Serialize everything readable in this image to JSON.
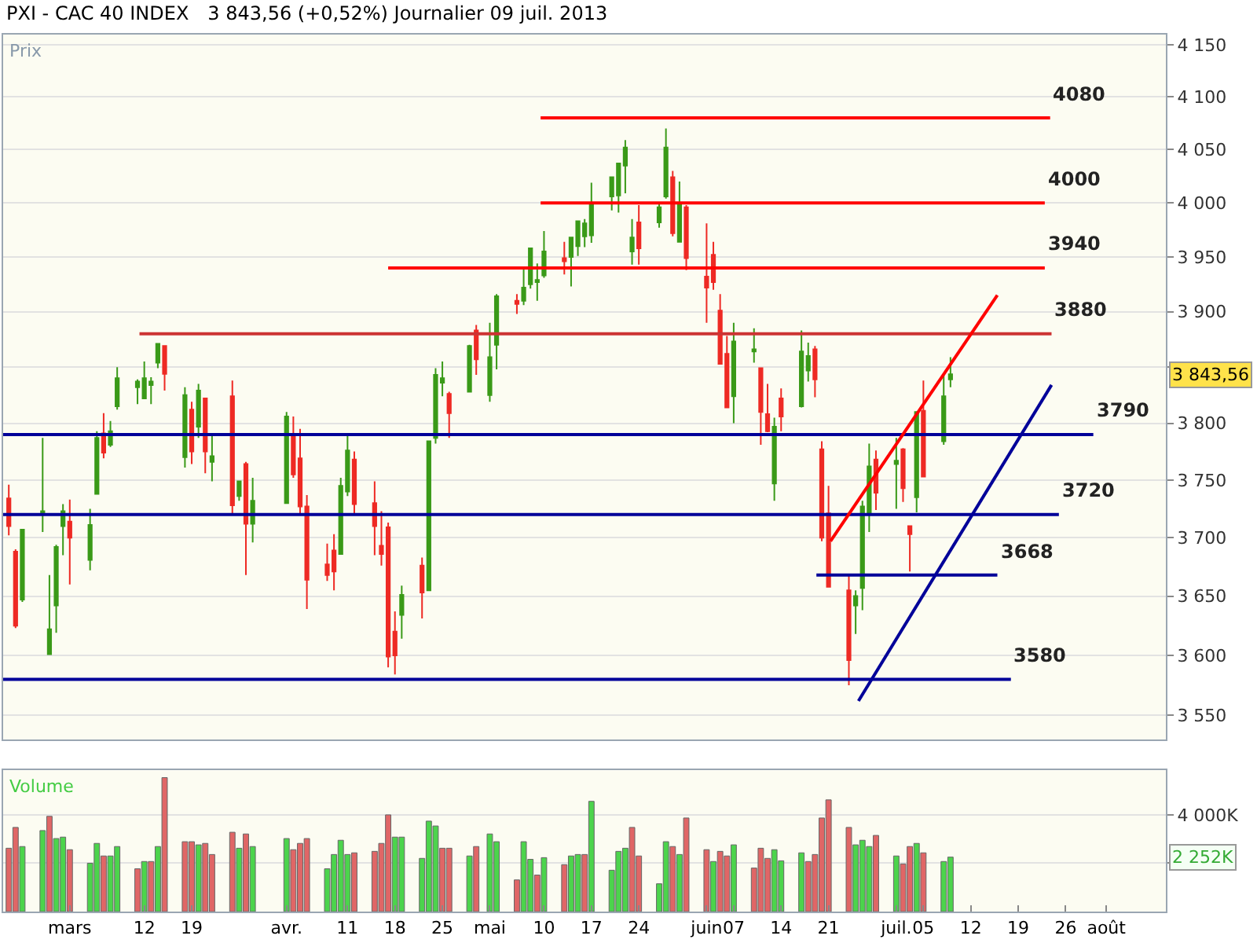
{
  "chart_data": [
    {
      "type": "candlestick",
      "title": "PXI - CAC 40 INDEX",
      "subtitle": "3 843,56 (+0,52%) Journalier 09 juil. 2013",
      "ylabel": "Prix",
      "log": true,
      "grid": "y",
      "tick_labels": "y",
      "xlim": [
        "2013-02-19T04:00",
        "2013-08-09T19:00"
      ],
      "ylim": [
        3530,
        4160
      ],
      "yticks": [
        {
          "value": 3550,
          "label": "3 550"
        },
        {
          "value": 3600,
          "label": "3 600"
        },
        {
          "value": 3650,
          "label": "3 650"
        },
        {
          "value": 3700,
          "label": "3 700"
        },
        {
          "value": 3750,
          "label": "3 750"
        },
        {
          "value": 3800,
          "label": "3 800"
        },
        {
          "value": 3850,
          "label": null
        },
        {
          "value": 3900,
          "label": "3 900"
        },
        {
          "value": 3950,
          "label": "3 950"
        },
        {
          "value": 4000,
          "label": "4 000"
        },
        {
          "value": 4050,
          "label": "4 050"
        },
        {
          "value": 4100,
          "label": "4 100"
        },
        {
          "value": 4150,
          "label": "4 150"
        }
      ],
      "x": [
        "2013-02-20",
        "2013-02-21",
        "2013-02-22",
        "2013-02-25",
        "2013-02-26",
        "2013-02-27",
        "2013-02-28",
        "2013-03-01",
        "2013-03-04",
        "2013-03-05",
        "2013-03-06",
        "2013-03-07",
        "2013-03-08",
        "2013-03-11",
        "2013-03-12",
        "2013-03-13",
        "2013-03-14",
        "2013-03-15",
        "2013-03-18",
        "2013-03-19",
        "2013-03-20",
        "2013-03-21",
        "2013-03-22",
        "2013-03-25",
        "2013-03-26",
        "2013-03-27",
        "2013-03-28",
        "2013-04-02",
        "2013-04-03",
        "2013-04-04",
        "2013-04-05",
        "2013-04-08",
        "2013-04-09",
        "2013-04-10",
        "2013-04-11",
        "2013-04-12",
        "2013-04-15",
        "2013-04-16",
        "2013-04-17",
        "2013-04-18",
        "2013-04-19",
        "2013-04-22",
        "2013-04-23",
        "2013-04-24",
        "2013-04-25",
        "2013-04-26",
        "2013-04-29",
        "2013-04-30",
        "2013-05-02",
        "2013-05-03",
        "2013-05-06",
        "2013-05-07",
        "2013-05-08",
        "2013-05-09",
        "2013-05-10",
        "2013-05-13",
        "2013-05-14",
        "2013-05-15",
        "2013-05-16",
        "2013-05-17",
        "2013-05-20",
        "2013-05-21",
        "2013-05-22",
        "2013-05-23",
        "2013-05-24",
        "2013-05-27",
        "2013-05-28",
        "2013-05-29",
        "2013-05-30",
        "2013-05-31",
        "2013-06-03",
        "2013-06-04",
        "2013-06-05",
        "2013-06-06",
        "2013-06-07",
        "2013-06-10",
        "2013-06-11",
        "2013-06-12",
        "2013-06-13",
        "2013-06-14",
        "2013-06-17",
        "2013-06-18",
        "2013-06-19",
        "2013-06-20",
        "2013-06-21",
        "2013-06-24",
        "2013-06-25",
        "2013-06-26",
        "2013-06-27",
        "2013-06-28",
        "2013-07-01",
        "2013-07-02",
        "2013-07-03",
        "2013-07-04",
        "2013-07-05",
        "2013-07-08",
        "2013-07-09"
      ],
      "ohlc": [
        [
          3734,
          3746,
          3702,
          3710
        ],
        [
          3688,
          3690,
          3623,
          3625
        ],
        [
          3647,
          3707,
          3645,
          3707
        ],
        [
          3721,
          3787,
          3705,
          3723
        ],
        [
          3601,
          3668,
          3601,
          3622
        ],
        [
          3642,
          3694,
          3619,
          3692
        ],
        [
          3710,
          3729,
          3685,
          3723
        ],
        [
          3714,
          3733,
          3660,
          3700
        ],
        [
          3681,
          3725,
          3672,
          3711
        ],
        [
          3738,
          3793,
          3738,
          3787
        ],
        [
          3791,
          3809,
          3769,
          3774
        ],
        [
          3781,
          3802,
          3779,
          3793
        ],
        [
          3815,
          3850,
          3812,
          3840
        ],
        [
          3832,
          3839,
          3817,
          3837
        ],
        [
          3822,
          3855,
          3822,
          3840
        ],
        [
          3834,
          3841,
          3817,
          3837
        ],
        [
          3854,
          3871,
          3849,
          3871
        ],
        [
          3869,
          3869,
          3829,
          3844
        ],
        [
          3770,
          3832,
          3761,
          3825
        ],
        [
          3812,
          3819,
          3764,
          3775
        ],
        [
          3797,
          3835,
          3787,
          3829
        ],
        [
          3822,
          3822,
          3756,
          3775
        ],
        [
          3766,
          3791,
          3749,
          3771
        ],
        [
          3824,
          3838,
          3720,
          3728
        ],
        [
          3736,
          3749,
          3732,
          3749
        ],
        [
          3764,
          3766,
          3668,
          3712
        ],
        [
          3712,
          3752,
          3696,
          3732
        ],
        [
          3730,
          3810,
          3730,
          3806
        ],
        [
          3789,
          3806,
          3752,
          3755
        ],
        [
          3769,
          3795,
          3721,
          3727
        ],
        [
          3727,
          3737,
          3639,
          3664
        ],
        [
          3677,
          3695,
          3663,
          3668
        ],
        [
          3689,
          3703,
          3655,
          3671
        ],
        [
          3686,
          3752,
          3686,
          3745
        ],
        [
          3740,
          3790,
          3736,
          3776
        ],
        [
          3768,
          3775,
          3721,
          3729
        ],
        [
          3730,
          3749,
          3685,
          3710
        ],
        [
          3693,
          3723,
          3676,
          3686
        ],
        [
          3709,
          3713,
          3590,
          3599
        ],
        [
          3620,
          3637,
          3584,
          3600
        ],
        [
          3634,
          3659,
          3614,
          3651
        ],
        [
          3676,
          3683,
          3631,
          3653
        ],
        [
          3655,
          3784,
          3655,
          3784
        ],
        [
          3787,
          3849,
          3782,
          3843
        ],
        [
          3836,
          3855,
          3824,
          3840
        ],
        [
          3826,
          3828,
          3787,
          3809
        ],
        [
          3828,
          3870,
          3828,
          3869
        ],
        [
          3883,
          3888,
          3843,
          3857
        ],
        [
          3825,
          3890,
          3819,
          3859
        ],
        [
          3870,
          3916,
          3848,
          3914
        ],
        [
          3910,
          3916,
          3898,
          3907
        ],
        [
          3910,
          3939,
          3906,
          3922
        ],
        [
          3925,
          3958,
          3921,
          3958
        ],
        [
          3927,
          3944,
          3910,
          3929
        ],
        [
          3933,
          3974,
          3931,
          3955
        ],
        [
          3949,
          3964,
          3934,
          3946
        ],
        [
          3950,
          3968,
          3923,
          3968
        ],
        [
          3960,
          3983,
          3951,
          3983
        ],
        [
          3969,
          3985,
          3959,
          3981
        ],
        [
          3970,
          4019,
          3963,
          4000
        ],
        [
          4006,
          4024,
          3993,
          4024
        ],
        [
          4007,
          4037,
          3991,
          4037
        ],
        [
          4035,
          4059,
          4009,
          4052
        ],
        [
          3955,
          3985,
          3943,
          3968
        ],
        [
          3982,
          3998,
          3943,
          3958
        ],
        [
          3982,
          3999,
          3977,
          3996
        ],
        [
          4006,
          4070,
          4004,
          4052
        ],
        [
          4024,
          4030,
          3969,
          3972
        ],
        [
          3964,
          4020,
          3964,
          3998
        ],
        [
          3996,
          3998,
          3938,
          3949
        ],
        [
          3932,
          3981,
          3890,
          3922
        ],
        [
          3952,
          3964,
          3920,
          3927
        ],
        [
          3901,
          3916,
          3853,
          3853
        ],
        [
          3862,
          3878,
          3814,
          3814
        ],
        [
          3824,
          3890,
          3800,
          3873
        ],
        [
          3864,
          3885,
          3854,
          3866
        ],
        [
          3849,
          3849,
          3781,
          3810
        ],
        [
          3808,
          3835,
          3792,
          3793
        ],
        [
          3747,
          3805,
          3732,
          3797
        ],
        [
          3822,
          3831,
          3793,
          3806
        ],
        [
          3815,
          3883,
          3814,
          3864
        ],
        [
          3847,
          3872,
          3837,
          3860
        ],
        [
          3866,
          3869,
          3823,
          3839
        ],
        [
          3777,
          3784,
          3697,
          3700
        ],
        [
          3721,
          3745,
          3658,
          3658
        ],
        [
          3655,
          3669,
          3575,
          3596
        ],
        [
          3642,
          3655,
          3618,
          3650
        ],
        [
          3657,
          3732,
          3638,
          3727
        ],
        [
          3721,
          3782,
          3705,
          3762
        ],
        [
          3768,
          3776,
          3724,
          3739
        ],
        [
          3764,
          3787,
          3725,
          3767
        ],
        [
          3777,
          3778,
          3731,
          3743
        ],
        [
          3710,
          3710,
          3671,
          3703
        ],
        [
          3735,
          3810,
          3722,
          3810
        ],
        [
          3811,
          3838,
          3753,
          3753
        ],
        [
          3784,
          3843,
          3781,
          3824
        ],
        [
          3839,
          3859,
          3832,
          3843.56
        ]
      ],
      "colors": [
        "#ee2a24",
        "#ee2a24",
        "#3a9a18",
        "#3a9a18",
        "#3a9a18",
        "#3a9a18",
        "#3a9a18",
        "#ee2a24",
        "#3a9a18",
        "#3a9a18",
        "#ee2a24",
        "#3a9a18",
        "#3a9a18",
        "#3a9a18",
        "#3a9a18",
        "#3a9a18",
        "#3a9a18",
        "#ee2a24",
        "#3a9a18",
        "#ee2a24",
        "#3a9a18",
        "#ee2a24",
        "#3a9a18",
        "#ee2a24",
        "#3a9a18",
        "#ee2a24",
        "#3a9a18",
        "#3a9a18",
        "#ee2a24",
        "#ee2a24",
        "#ee2a24",
        "#ee2a24",
        "#ee2a24",
        "#3a9a18",
        "#3a9a18",
        "#ee2a24",
        "#ee2a24",
        "#ee2a24",
        "#ee2a24",
        "#ee2a24",
        "#3a9a18",
        "#ee2a24",
        "#3a9a18",
        "#3a9a18",
        "#3a9a18",
        "#ee2a24",
        "#3a9a18",
        "#ee2a24",
        "#3a9a18",
        "#3a9a18",
        "#ee2a24",
        "#3a9a18",
        "#3a9a18",
        "#3a9a18",
        "#3a9a18",
        "#ee2a24",
        "#3a9a18",
        "#3a9a18",
        "#3a9a18",
        "#3a9a18",
        "#3a9a18",
        "#3a9a18",
        "#3a9a18",
        "#3a9a18",
        "#ee2a24",
        "#3a9a18",
        "#3a9a18",
        "#ee2a24",
        "#3a9a18",
        "#ee2a24",
        "#ee2a24",
        "#ee2a24",
        "#ee2a24",
        "#ee2a24",
        "#3a9a18",
        "#3a9a18",
        "#ee2a24",
        "#ee2a24",
        "#3a9a18",
        "#ee2a24",
        "#3a9a18",
        "#3a9a18",
        "#ee2a24",
        "#ee2a24",
        "#ee2a24",
        "#ee2a24",
        "#3a9a18",
        "#3a9a18",
        "#3a9a18",
        "#ee2a24",
        "#3a9a18",
        "#ee2a24",
        "#ee2a24",
        "#3a9a18",
        "#ee2a24",
        "#3a9a18",
        "#3a9a18"
      ],
      "series": [
        {
          "type": "line",
          "name": "4080",
          "color": "#ff0000",
          "x": [
            "2013-05-09T12:00",
            "2013-07-23T17:00"
          ],
          "values": [
            4080,
            4080
          ]
        },
        {
          "type": "line",
          "name": "4000",
          "color": "#ff0000",
          "x": [
            "2013-05-09T12:00",
            "2013-07-22T22:00"
          ],
          "values": [
            4000,
            4000
          ]
        },
        {
          "type": "line",
          "name": "3940",
          "color": "#ff0000",
          "x": [
            "2013-04-17",
            "2013-07-22T22:00"
          ],
          "values": [
            3940,
            3940
          ]
        },
        {
          "type": "line",
          "name": "3880",
          "color": "#cc3333",
          "x": [
            "2013-03-11T07:00",
            "2013-07-23T22:00"
          ],
          "values": [
            3880,
            3880
          ]
        },
        {
          "type": "line",
          "name": "3790",
          "color": "#000099",
          "x": [
            "2013-02-19T04:00",
            "2013-07-30T02:00"
          ],
          "values": [
            3790,
            3790
          ]
        },
        {
          "type": "line",
          "name": "3720",
          "color": "#000099",
          "x": [
            "2013-02-19T04:00",
            "2013-07-25"
          ],
          "values": [
            3720,
            3720
          ]
        },
        {
          "type": "line",
          "name": "3668",
          "color": "#000099",
          "x": [
            "2013-06-19T05:00",
            "2013-07-15T22:00"
          ],
          "values": [
            3668,
            3668
          ]
        },
        {
          "type": "line",
          "name": "3580",
          "color": "#000099",
          "x": [
            "2013-02-19T04:00",
            "2013-07-17T22:00"
          ],
          "values": [
            3580,
            3580
          ]
        },
        {
          "type": "line",
          "color": "#ff0000",
          "x": [
            "2013-06-21T07:00",
            "2013-07-15T22:00"
          ],
          "values": [
            3697,
            3915
          ]
        },
        {
          "type": "line",
          "color": "#000099",
          "x": [
            "2013-06-25T10:00",
            "2013-07-23T22:00"
          ],
          "values": [
            3562,
            3834
          ]
        }
      ],
      "annotations": [
        "3 843,56"
      ]
    },
    {
      "type": "bar",
      "ylabel": "Volume",
      "grid": "y",
      "xlim": [
        "2013-02-19T04:00",
        "2013-08-09T19:00"
      ],
      "ylim": [
        0,
        5840
      ],
      "yticks": [
        {
          "value": 2000,
          "label": null
        },
        {
          "value": 4000,
          "label": "4 000K"
        }
      ],
      "xticks": [
        {
          "value": "2013-03-01",
          "label": "mars"
        },
        {
          "value": "2013-03-12",
          "label": "12"
        },
        {
          "value": "2013-03-19",
          "label": "19"
        },
        {
          "value": "2013-04-02",
          "label": "avr."
        },
        {
          "value": "2013-04-11",
          "label": "11"
        },
        {
          "value": "2013-04-18",
          "label": "18"
        },
        {
          "value": "2013-04-25",
          "label": "25"
        },
        {
          "value": "2013-05-02",
          "label": "mai"
        },
        {
          "value": "2013-05-10",
          "label": "10"
        },
        {
          "value": "2013-05-17",
          "label": "17"
        },
        {
          "value": "2013-05-24",
          "label": "24"
        },
        {
          "value": "2013-06-03",
          "label": "juin"
        },
        {
          "value": "2013-06-07",
          "label": "07"
        },
        {
          "value": "2013-06-14",
          "label": "14"
        },
        {
          "value": "2013-06-21",
          "label": "21"
        },
        {
          "value": "2013-07-01",
          "label": "juil."
        },
        {
          "value": "2013-07-05",
          "label": "05"
        },
        {
          "value": "2013-07-12",
          "label": "12"
        },
        {
          "value": "2013-07-19",
          "label": "19"
        },
        {
          "value": "2013-07-26",
          "label": "26"
        },
        {
          "value": "2013-08-01",
          "label": "août"
        }
      ],
      "x": [
        "2013-02-20",
        "2013-02-21",
        "2013-02-22",
        "2013-02-25",
        "2013-02-26",
        "2013-02-27",
        "2013-02-28",
        "2013-03-01",
        "2013-03-04",
        "2013-03-05",
        "2013-03-06",
        "2013-03-07",
        "2013-03-08",
        "2013-03-11",
        "2013-03-12",
        "2013-03-13",
        "2013-03-14",
        "2013-03-15",
        "2013-03-18",
        "2013-03-19",
        "2013-03-20",
        "2013-03-21",
        "2013-03-22",
        "2013-03-25",
        "2013-03-26",
        "2013-03-27",
        "2013-03-28",
        "2013-04-02",
        "2013-04-03",
        "2013-04-04",
        "2013-04-05",
        "2013-04-08",
        "2013-04-09",
        "2013-04-10",
        "2013-04-11",
        "2013-04-12",
        "2013-04-15",
        "2013-04-16",
        "2013-04-17",
        "2013-04-18",
        "2013-04-19",
        "2013-04-22",
        "2013-04-23",
        "2013-04-24",
        "2013-04-25",
        "2013-04-26",
        "2013-04-29",
        "2013-04-30",
        "2013-05-02",
        "2013-05-03",
        "2013-05-06",
        "2013-05-07",
        "2013-05-08",
        "2013-05-09",
        "2013-05-10",
        "2013-05-13",
        "2013-05-14",
        "2013-05-15",
        "2013-05-16",
        "2013-05-17",
        "2013-05-20",
        "2013-05-21",
        "2013-05-22",
        "2013-05-23",
        "2013-05-24",
        "2013-05-27",
        "2013-05-28",
        "2013-05-29",
        "2013-05-30",
        "2013-05-31",
        "2013-06-03",
        "2013-06-04",
        "2013-06-05",
        "2013-06-06",
        "2013-06-07",
        "2013-06-10",
        "2013-06-11",
        "2013-06-12",
        "2013-06-13",
        "2013-06-14",
        "2013-06-17",
        "2013-06-18",
        "2013-06-19",
        "2013-06-20",
        "2013-06-21",
        "2013-06-24",
        "2013-06-25",
        "2013-06-26",
        "2013-06-27",
        "2013-06-28",
        "2013-07-01",
        "2013-07-02",
        "2013-07-03",
        "2013-07-04",
        "2013-07-05",
        "2013-07-08",
        "2013-07-09"
      ],
      "values": [
        2620,
        3480,
        2690,
        3350,
        3940,
        3020,
        3080,
        2560,
        2000,
        2820,
        2300,
        2300,
        2690,
        1770,
        2070,
        2070,
        2690,
        5540,
        2890,
        2890,
        2760,
        2820,
        2360,
        3280,
        2620,
        3210,
        2690,
        3020,
        2560,
        2820,
        3020,
        1770,
        2360,
        2950,
        2360,
        2430,
        2490,
        2820,
        4000,
        3080,
        3080,
        2200,
        3740,
        3540,
        2620,
        2620,
        2300,
        2690,
        3210,
        2890,
        1310,
        2890,
        2160,
        1510,
        2230,
        1940,
        2300,
        2360,
        2360,
        4560,
        1710,
        2490,
        2620,
        3480,
        2300,
        1150,
        2890,
        2690,
        2360,
        3870,
        2560,
        2070,
        2490,
        2300,
        2760,
        1800,
        2620,
        2200,
        2560,
        2100,
        2430,
        2070,
        2360,
        3870,
        4620,
        3480,
        2760,
        2950,
        2690,
        3150,
        2300,
        1970,
        2690,
        2820,
        2430,
        2070,
        2252
      ],
      "colors": [
        "#e06666",
        "#e06666",
        "#4cd44c",
        "#4cd44c",
        "#e06666",
        "#4cd44c",
        "#4cd44c",
        "#e06666",
        "#4cd44c",
        "#4cd44c",
        "#e06666",
        "#4cd44c",
        "#4cd44c",
        "#e06666",
        "#4cd44c",
        "#e06666",
        "#4cd44c",
        "#e06666",
        "#e06666",
        "#e06666",
        "#4cd44c",
        "#e06666",
        "#e06666",
        "#e06666",
        "#4cd44c",
        "#e06666",
        "#4cd44c",
        "#4cd44c",
        "#e06666",
        "#e06666",
        "#e06666",
        "#4cd44c",
        "#4cd44c",
        "#4cd44c",
        "#4cd44c",
        "#e06666",
        "#e06666",
        "#e06666",
        "#e06666",
        "#4cd44c",
        "#4cd44c",
        "#4cd44c",
        "#4cd44c",
        "#4cd44c",
        "#e06666",
        "#e06666",
        "#4cd44c",
        "#e06666",
        "#4cd44c",
        "#4cd44c",
        "#e06666",
        "#4cd44c",
        "#4cd44c",
        "#e06666",
        "#4cd44c",
        "#e06666",
        "#4cd44c",
        "#4cd44c",
        "#e06666",
        "#4cd44c",
        "#4cd44c",
        "#4cd44c",
        "#4cd44c",
        "#e06666",
        "#e06666",
        "#4cd44c",
        "#4cd44c",
        "#e06666",
        "#4cd44c",
        "#e06666",
        "#e06666",
        "#4cd44c",
        "#e06666",
        "#e06666",
        "#4cd44c",
        "#e06666",
        "#e06666",
        "#e06666",
        "#4cd44c",
        "#4cd44c",
        "#4cd44c",
        "#e06666",
        "#e06666",
        "#e06666",
        "#e06666",
        "#e06666",
        "#4cd44c",
        "#4cd44c",
        "#4cd44c",
        "#e06666",
        "#4cd44c",
        "#e06666",
        "#e06666",
        "#4cd44c",
        "#e06666",
        "#4cd44c",
        "#4cd44c"
      ],
      "annotations": [
        "2 252K"
      ]
    }
  ]
}
